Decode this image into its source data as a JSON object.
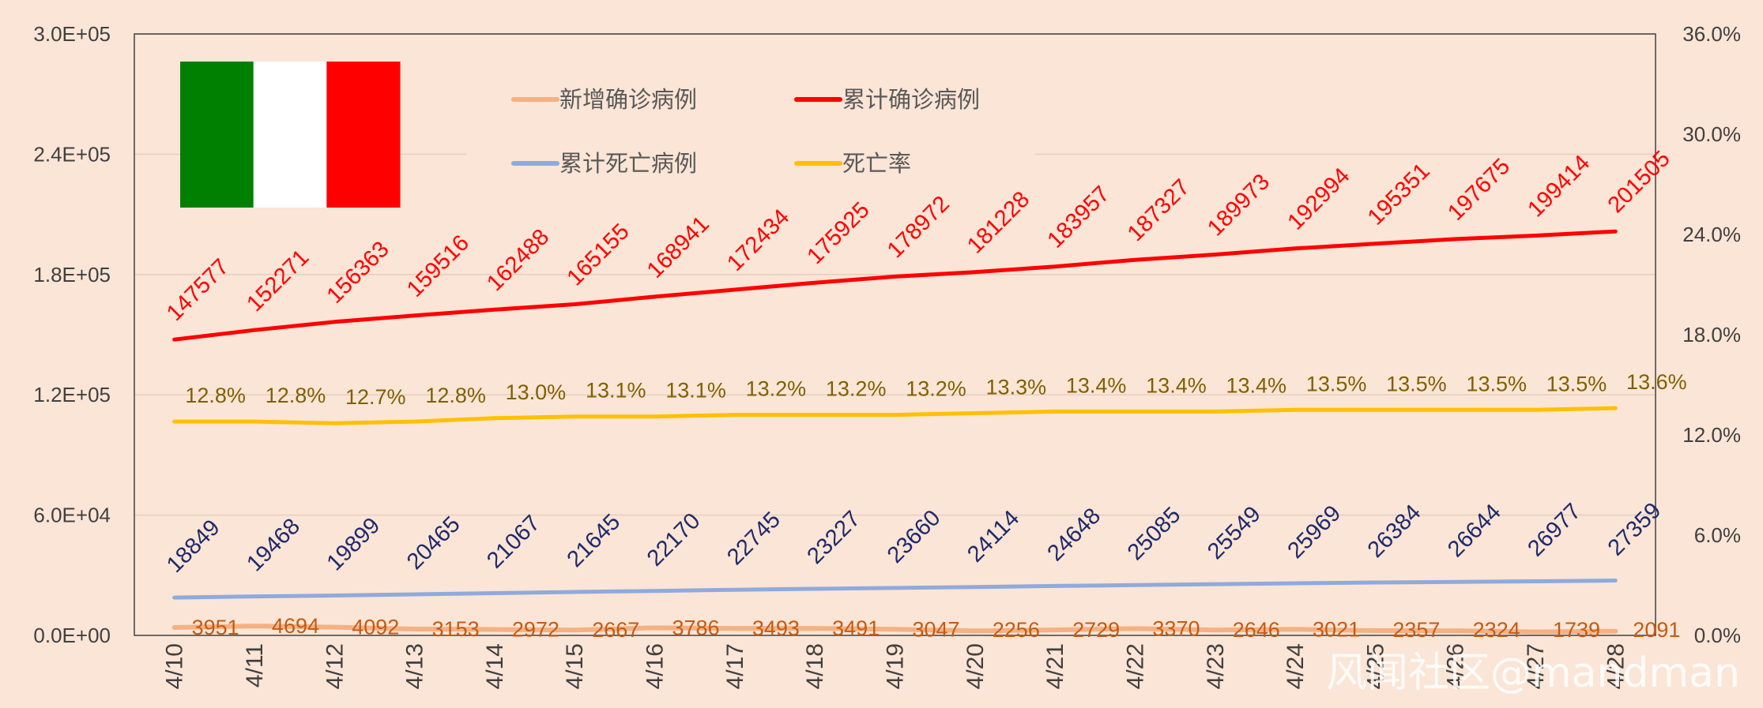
{
  "chart_data": {
    "type": "line",
    "categories": [
      "4/10",
      "4/11",
      "4/12",
      "4/13",
      "4/14",
      "4/15",
      "4/16",
      "4/17",
      "4/18",
      "4/19",
      "4/20",
      "4/21",
      "4/22",
      "4/23",
      "4/24",
      "4/25",
      "4/26",
      "4/27",
      "4/28"
    ],
    "series": [
      {
        "name": "新增确诊病例",
        "axis": "left",
        "color": "#f4b183",
        "values": [
          3951,
          4694,
          4092,
          3153,
          2972,
          2667,
          3786,
          3493,
          3491,
          3047,
          2256,
          2729,
          3370,
          2646,
          3021,
          2357,
          2324,
          1739,
          2091
        ],
        "labels": [
          "3951",
          "4694",
          "4092",
          "3153",
          "2972",
          "2667",
          "3786",
          "3493",
          "3491",
          "3047",
          "2256",
          "2729",
          "3370",
          "2646",
          "3021",
          "2357",
          "2324",
          "1739",
          "2091"
        ]
      },
      {
        "name": "累计确诊病例",
        "axis": "left",
        "color": "#ff0000",
        "values": [
          147577,
          152271,
          156363,
          159516,
          162488,
          165155,
          168941,
          172434,
          175925,
          178972,
          181228,
          183957,
          187327,
          189973,
          192994,
          195351,
          197675,
          199414,
          201505
        ],
        "labels": [
          "147577",
          "152271",
          "156363",
          "159516",
          "162488",
          "165155",
          "168941",
          "172434",
          "175925",
          "178972",
          "181228",
          "183957",
          "187327",
          "189973",
          "192994",
          "195351",
          "197675",
          "199414",
          "201505"
        ]
      },
      {
        "name": "累计死亡病例",
        "axis": "left",
        "color": "#8faadc",
        "values": [
          18849,
          19468,
          19899,
          20465,
          21067,
          21645,
          22170,
          22745,
          23227,
          23660,
          24114,
          24648,
          25085,
          25549,
          25969,
          26384,
          26644,
          26977,
          27359
        ],
        "labels": [
          "18849",
          "19468",
          "19899",
          "20465",
          "21067",
          "21645",
          "22170",
          "22745",
          "23227",
          "23660",
          "24114",
          "24648",
          "25085",
          "25549",
          "25969",
          "26384",
          "26644",
          "26977",
          "27359"
        ]
      },
      {
        "name": "死亡率",
        "axis": "right",
        "color": "#ffc000",
        "values": [
          12.8,
          12.8,
          12.7,
          12.8,
          13.0,
          13.1,
          13.1,
          13.2,
          13.2,
          13.2,
          13.3,
          13.4,
          13.4,
          13.4,
          13.5,
          13.5,
          13.5,
          13.5,
          13.6
        ],
        "labels": [
          "12.8%",
          "12.8%",
          "12.7%",
          "12.8%",
          "13.0%",
          "13.1%",
          "13.1%",
          "13.2%",
          "13.2%",
          "13.2%",
          "13.3%",
          "13.4%",
          "13.4%",
          "13.4%",
          "13.5%",
          "13.5%",
          "13.5%",
          "13.5%",
          "13.6%"
        ]
      }
    ],
    "y_left": {
      "min": 0,
      "max": 300000,
      "ticks": [
        "0.0E+00",
        "6.0E+04",
        "1.2E+05",
        "1.8E+05",
        "2.4E+05",
        "3.0E+05"
      ]
    },
    "y_right": {
      "min": 0,
      "max": 36,
      "ticks": [
        "0.0%",
        "6.0%",
        "12.0%",
        "18.0%",
        "24.0%",
        "30.0%",
        "36.0%"
      ]
    },
    "grid": true,
    "legend_position": "top-center",
    "flag_colors": [
      "#008000",
      "#ffffff",
      "#ff0000"
    ]
  },
  "watermark": "风闻社区@mandman"
}
